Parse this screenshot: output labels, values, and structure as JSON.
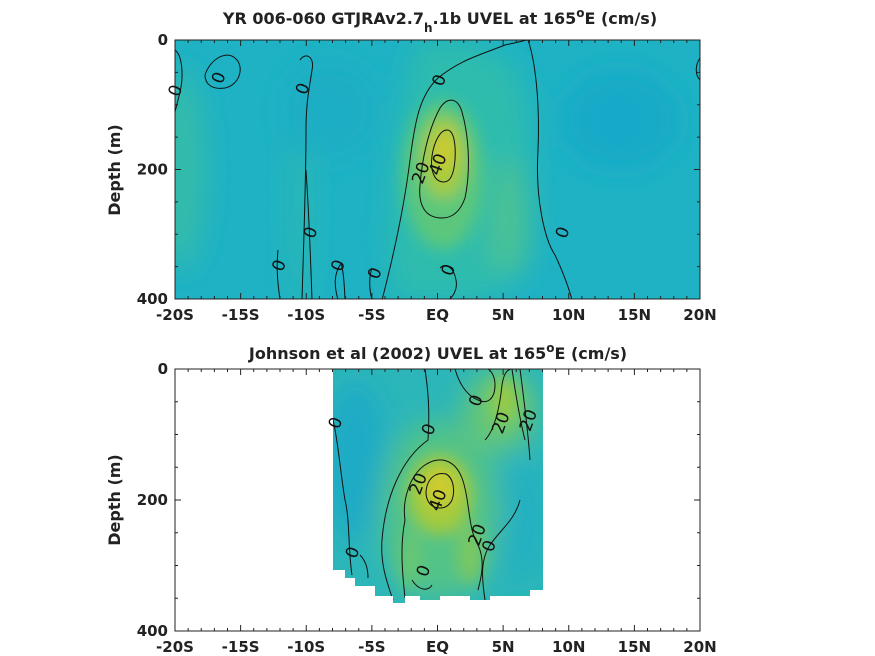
{
  "chart_data": [
    {
      "type": "heatmap",
      "title_main": "YR 006-060 GTJRAv2.7",
      "title_sub": "h",
      "title_after_sub": ".1b UVEL at 165",
      "title_sup": "o",
      "title_end": "E (cm/s)",
      "ylabel": "Depth (m)",
      "xlabel": "",
      "x_ticks": [
        "-20S",
        "-15S",
        "-10S",
        "-5S",
        "EQ",
        "5N",
        "10N",
        "15N",
        "20N"
      ],
      "y_ticks": [
        "0",
        "200",
        "400"
      ],
      "xlim": [
        -20,
        20
      ],
      "ylim": [
        400,
        0
      ],
      "data_extent": {
        "lat": [
          -20,
          20
        ],
        "depth": [
          0,
          395
        ]
      },
      "colors": {
        "background": "#1eb2c4",
        "weak": "#3fbf9a",
        "mid": "#86c95a",
        "core": "#c8cc2f"
      },
      "cores": [
        {
          "lat": 0.2,
          "depth": 165,
          "value": 45
        }
      ],
      "contour_labels": [
        {
          "text": "0",
          "lat": -20.0,
          "depth": 78
        },
        {
          "text": "0",
          "lat": -16.7,
          "depth": 58
        },
        {
          "text": "0",
          "lat": -10.3,
          "depth": 75
        },
        {
          "text": "0",
          "lat": 0.1,
          "depth": 62
        },
        {
          "text": "40",
          "lat": 0.0,
          "depth": 192
        },
        {
          "text": "20",
          "lat": -1.3,
          "depth": 205
        },
        {
          "text": "0",
          "lat": -9.7,
          "depth": 297
        },
        {
          "text": "0",
          "lat": 9.5,
          "depth": 297
        },
        {
          "text": "0",
          "lat": -12.1,
          "depth": 348
        },
        {
          "text": "0",
          "lat": -7.6,
          "depth": 348
        },
        {
          "text": "0",
          "lat": -4.8,
          "depth": 360
        },
        {
          "text": "0",
          "lat": 0.8,
          "depth": 355
        }
      ]
    },
    {
      "type": "heatmap",
      "title_main": "Johnson et al (2002) UVEL at 165",
      "title_sup": "o",
      "title_end": "E (cm/s)",
      "ylabel": "Depth (m)",
      "xlabel": "",
      "x_ticks": [
        "-20S",
        "-15S",
        "-10S",
        "-5S",
        "EQ",
        "5N",
        "10N",
        "15N",
        "20N"
      ],
      "y_ticks": [
        "0",
        "200",
        "400"
      ],
      "xlim": [
        -20,
        20
      ],
      "ylim": [
        400,
        0
      ],
      "data_extent": {
        "lat": [
          -8,
          8
        ],
        "depth": [
          0,
          350
        ]
      },
      "colors": {
        "background": "#1eb2c4",
        "weak": "#3fbf9a",
        "mid": "#86c95a",
        "core": "#c8cc2f"
      },
      "cores": [
        {
          "lat": 0.5,
          "depth": 190,
          "value": 45
        },
        {
          "lat": 5.5,
          "depth": 60,
          "value": 25
        }
      ],
      "contour_labels": [
        {
          "text": "0",
          "lat": -7.8,
          "depth": 82
        },
        {
          "text": "0",
          "lat": -0.7,
          "depth": 92
        },
        {
          "text": "0",
          "lat": 2.9,
          "depth": 48
        },
        {
          "text": "20",
          "lat": 4.8,
          "depth": 82
        },
        {
          "text": "20",
          "lat": 6.9,
          "depth": 78
        },
        {
          "text": "20",
          "lat": -1.5,
          "depth": 175
        },
        {
          "text": "40",
          "lat": 0.0,
          "depth": 200
        },
        {
          "text": "20",
          "lat": 3.0,
          "depth": 253
        },
        {
          "text": "0",
          "lat": 3.9,
          "depth": 270
        },
        {
          "text": "0",
          "lat": -6.5,
          "depth": 280
        },
        {
          "text": "0",
          "lat": -1.1,
          "depth": 308
        }
      ]
    }
  ]
}
